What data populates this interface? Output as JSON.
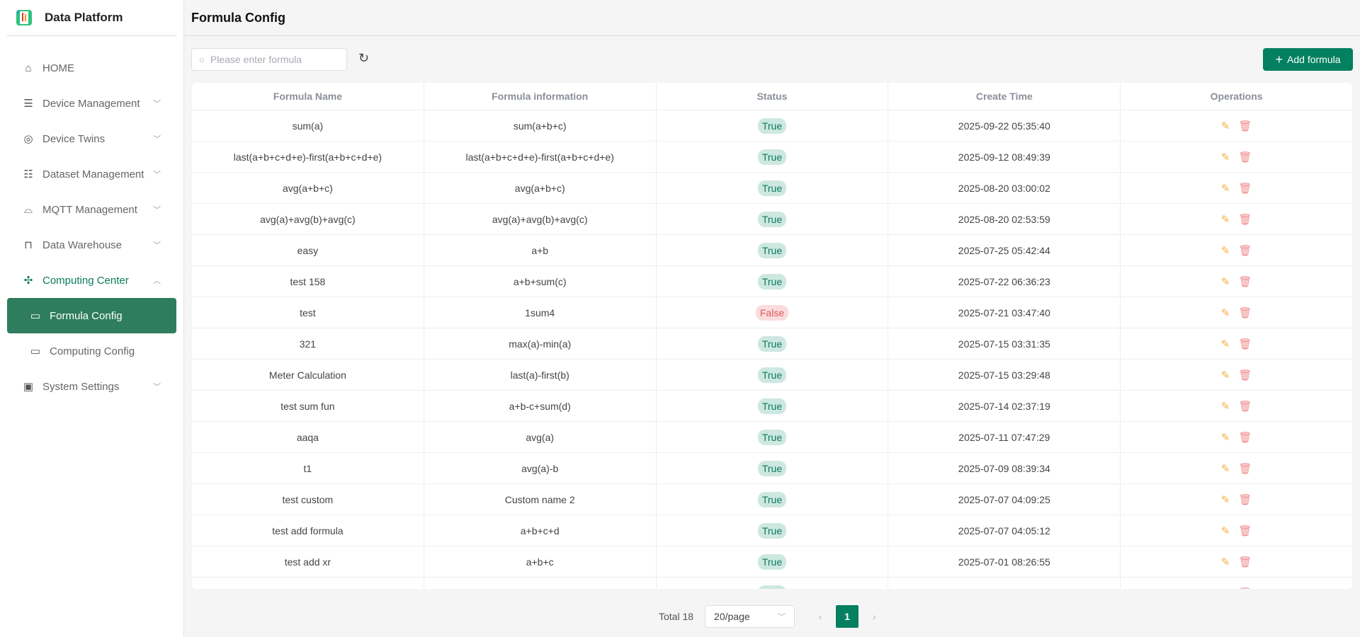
{
  "app": {
    "name": "Data Platform"
  },
  "sidebar": {
    "items": [
      {
        "label": "HOME",
        "icon": "home-icon"
      },
      {
        "label": "Device Management",
        "icon": "server-icon"
      },
      {
        "label": "Device Twins",
        "icon": "cube-icon"
      },
      {
        "label": "Dataset Management",
        "icon": "database-icon"
      },
      {
        "label": "MQTT Management",
        "icon": "router-icon"
      },
      {
        "label": "Data Warehouse",
        "icon": "board-icon"
      },
      {
        "label": "Computing Center",
        "icon": "compute-icon"
      },
      {
        "label": "Formula Config",
        "icon": "card-icon"
      },
      {
        "label": "Computing Config",
        "icon": "card-icon"
      },
      {
        "label": "System Settings",
        "icon": "monitor-icon"
      }
    ]
  },
  "header": {
    "title": "Formula Config"
  },
  "toolbar": {
    "search_placeholder": "Please enter formula",
    "add_label": "Add formula"
  },
  "table": {
    "columns": [
      "Formula Name",
      "Formula information",
      "Status",
      "Create Time",
      "Operations"
    ],
    "rows": [
      {
        "name": "sum(a)",
        "info": "sum(a+b+c)",
        "status": "True",
        "time": "2025-09-22 05:35:40"
      },
      {
        "name": "last(a+b+c+d+e)-first(a+b+c+d+e)",
        "info": "last(a+b+c+d+e)-first(a+b+c+d+e)",
        "status": "True",
        "time": "2025-09-12 08:49:39"
      },
      {
        "name": "avg(a+b+c)",
        "info": "avg(a+b+c)",
        "status": "True",
        "time": "2025-08-20 03:00:02"
      },
      {
        "name": "avg(a)+avg(b)+avg(c)",
        "info": "avg(a)+avg(b)+avg(c)",
        "status": "True",
        "time": "2025-08-20 02:53:59"
      },
      {
        "name": "easy",
        "info": "a+b",
        "status": "True",
        "time": "2025-07-25 05:42:44"
      },
      {
        "name": "test 158",
        "info": "a+b+sum(c)",
        "status": "True",
        "time": "2025-07-22 06:36:23"
      },
      {
        "name": "test",
        "info": "1sum4",
        "status": "False",
        "time": "2025-07-21 03:47:40"
      },
      {
        "name": "321",
        "info": "max(a)-min(a)",
        "status": "True",
        "time": "2025-07-15 03:31:35"
      },
      {
        "name": "Meter Calculation",
        "info": "last(a)-first(b)",
        "status": "True",
        "time": "2025-07-15 03:29:48"
      },
      {
        "name": "test sum fun",
        "info": "a+b-c+sum(d)",
        "status": "True",
        "time": "2025-07-14 02:37:19"
      },
      {
        "name": "aaqa",
        "info": "avg(a)",
        "status": "True",
        "time": "2025-07-11 07:47:29"
      },
      {
        "name": "t1",
        "info": "avg(a)-b",
        "status": "True",
        "time": "2025-07-09 08:39:34"
      },
      {
        "name": "test custom",
        "info": "Custom name 2",
        "status": "True",
        "time": "2025-07-07 04:09:25"
      },
      {
        "name": "test add formula",
        "info": "a+b+c+d",
        "status": "True",
        "time": "2025-07-07 04:05:12"
      },
      {
        "name": "test add xr",
        "info": "a+b+c",
        "status": "True",
        "time": "2025-07-01 08:26:55"
      },
      {
        "name": "",
        "info": "",
        "status": "True",
        "time": ""
      }
    ]
  },
  "pagination": {
    "total": "Total 18",
    "page_size": "20/page",
    "current": "1"
  },
  "colors": {
    "accent": "#038060",
    "active_nav": "#2e7d5e",
    "true_bg": "#cde8e0",
    "false_bg": "#fadcdc"
  }
}
